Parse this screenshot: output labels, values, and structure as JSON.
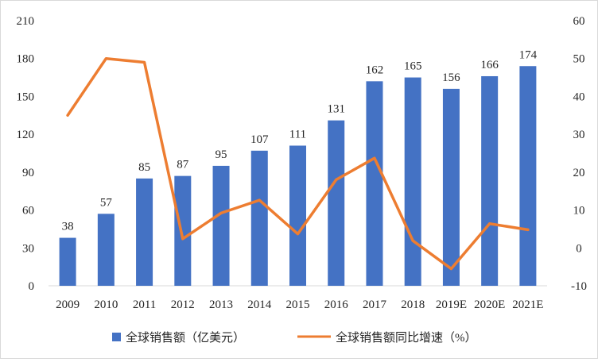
{
  "chart_data": {
    "type": "bar+line",
    "title": "",
    "categories": [
      "2009",
      "2010",
      "2011",
      "2012",
      "2013",
      "2014",
      "2015",
      "2016",
      "2017",
      "2018",
      "2019E",
      "2020E",
      "2021E"
    ],
    "series": [
      {
        "name": "全球销售额（亿美元）",
        "type": "bar",
        "axis": "left",
        "values": [
          38,
          57,
          85,
          87,
          95,
          107,
          111,
          131,
          162,
          165,
          156,
          166,
          174
        ],
        "data_labels": [
          "38",
          "57",
          "85",
          "87",
          "95",
          "107",
          "111",
          "131",
          "162",
          "165",
          "156",
          "166",
          "174"
        ]
      },
      {
        "name": "全球销售额同比增速（%）",
        "type": "line",
        "axis": "right",
        "values": [
          35,
          50,
          49,
          2.4,
          9.2,
          12.6,
          3.7,
          18,
          23.7,
          1.9,
          -5.5,
          6.4,
          4.8
        ]
      }
    ],
    "y_left": {
      "min": 0,
      "max": 210,
      "step": 30,
      "ticks": [
        "0",
        "30",
        "60",
        "90",
        "120",
        "150",
        "180",
        "210"
      ]
    },
    "y_right": {
      "min": -10,
      "max": 60,
      "step": 10,
      "ticks": [
        "-10",
        "0",
        "10",
        "20",
        "30",
        "40",
        "50",
        "60"
      ]
    },
    "grid": false,
    "legend_position": "bottom",
    "colors": {
      "bar": "#4472c4",
      "line": "#ed7d31",
      "axis": "#d9d9d9",
      "text": "#262626"
    }
  }
}
